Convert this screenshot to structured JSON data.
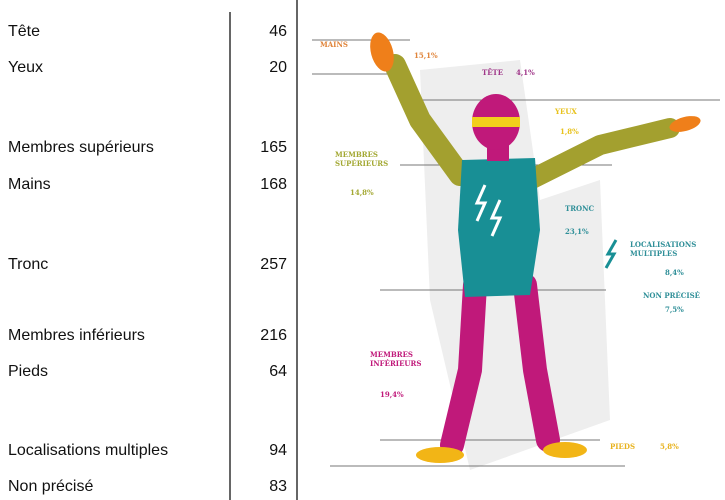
{
  "table": {
    "rows": [
      [
        "Tête",
        46
      ],
      [
        "Yeux",
        20
      ],
      [
        "Membres supérieurs",
        165
      ],
      [
        "Mains",
        168
      ],
      [
        "Tronc",
        257
      ],
      [
        "Membres inférieurs",
        216
      ],
      [
        "Pieds",
        64
      ],
      [
        "Localisations multiples",
        94
      ],
      [
        "Non précisé",
        83
      ]
    ]
  },
  "figure": {
    "labels": [
      {
        "name": [
          "MAINS"
        ],
        "percent": "15,1%",
        "color": "#e0843a"
      },
      {
        "name": [
          "TÊTE"
        ],
        "percent": "4,1%",
        "color": "#a0388a"
      },
      {
        "name": [
          "YEUX"
        ],
        "percent": "1,8%",
        "color": "#e8c21c"
      },
      {
        "name": [
          "MEMBRES",
          "SUPÉRIEURS"
        ],
        "percent": "14,8%",
        "color": "#a3a833"
      },
      {
        "name": [
          "TRONC"
        ],
        "percent": "23,1%",
        "color": "#2f8f98"
      },
      {
        "name": [
          "LOCALISATIONS",
          "MULTIPLES"
        ],
        "percent": "8,4%",
        "color": "#2f8f98"
      },
      {
        "name": [
          "NON PRÉCISÉ"
        ],
        "percent": "7,5%",
        "color": "#2f8f98"
      },
      {
        "name": [
          "MEMBRES",
          "INFÉRIEURS"
        ],
        "percent": "19,4%",
        "color": "#c0197a"
      },
      {
        "name": [
          "PIEDS"
        ],
        "percent": "5,8%",
        "color": "#e8b21c"
      }
    ]
  }
}
